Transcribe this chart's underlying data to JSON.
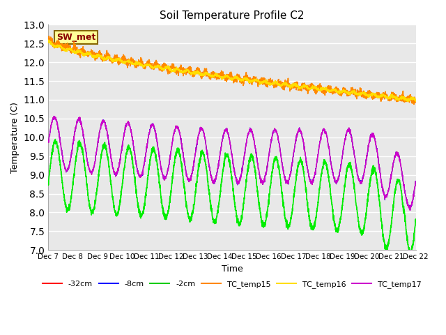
{
  "title": "Soil Temperature Profile C2",
  "xlabel": "Time",
  "ylabel": "Temperature (C)",
  "ylim": [
    7.0,
    13.0
  ],
  "yticks": [
    7.0,
    7.5,
    8.0,
    8.5,
    9.0,
    9.5,
    10.0,
    10.5,
    11.0,
    11.5,
    12.0,
    12.5,
    13.0
  ],
  "sw_met_label": "SW_met",
  "legend_entries": [
    "-32cm",
    "-8cm",
    "-2cm",
    "TC_temp15",
    "TC_temp16",
    "TC_temp17"
  ],
  "legend_colors": [
    "#ff0000",
    "#0000ff",
    "#00cc00",
    "#ff8800",
    "#ffdd00",
    "#cc00cc"
  ],
  "line_colors": {
    "minus32": "#ff0000",
    "minus8": "#0000ff",
    "minus2": "#00ee00",
    "tc15": "#ff8800",
    "tc16": "#ffdd00",
    "tc17": "#cc00cc"
  },
  "ax_bg_color": "#e8e8e8",
  "grid_color": "#ffffff",
  "n_points": 3000
}
